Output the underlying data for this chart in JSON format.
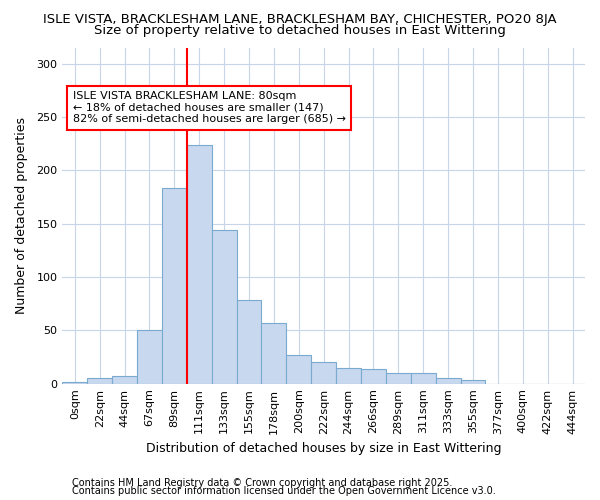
{
  "title1": "ISLE VISTA, BRACKLESHAM LANE, BRACKLESHAM BAY, CHICHESTER, PO20 8JA",
  "title2": "Size of property relative to detached houses in East Wittering",
  "xlabel": "Distribution of detached houses by size in East Wittering",
  "ylabel": "Number of detached properties",
  "categories": [
    "0sqm",
    "22sqm",
    "44sqm",
    "67sqm",
    "89sqm",
    "111sqm",
    "133sqm",
    "155sqm",
    "178sqm",
    "200sqm",
    "222sqm",
    "244sqm",
    "266sqm",
    "289sqm",
    "311sqm",
    "333sqm",
    "355sqm",
    "377sqm",
    "400sqm",
    "422sqm",
    "444sqm"
  ],
  "values": [
    2,
    5,
    7,
    50,
    183,
    224,
    144,
    78,
    57,
    27,
    20,
    15,
    14,
    10,
    10,
    5,
    3,
    0,
    0,
    0,
    0
  ],
  "bar_color": "#c8d8ee",
  "bar_edge_color": "#7aaad0",
  "red_line_x": 4.5,
  "annotation_text": "ISLE VISTA BRACKLESHAM LANE: 80sqm\n← 18% of detached houses are smaller (147)\n82% of semi-detached houses are larger (685) →",
  "annotation_box_color": "white",
  "annotation_box_edge_color": "red",
  "ylim": [
    0,
    315
  ],
  "yticks": [
    0,
    50,
    100,
    150,
    200,
    250,
    300
  ],
  "plot_bg_color": "#ffffff",
  "fig_bg_color": "#ffffff",
  "grid_color": "#c8d4e8",
  "footer1": "Contains HM Land Registry data © Crown copyright and database right 2025.",
  "footer2": "Contains public sector information licensed under the Open Government Licence v3.0.",
  "title_fontsize": 9.5,
  "subtitle_fontsize": 9.5,
  "tick_fontsize": 8,
  "label_fontsize": 9,
  "footer_fontsize": 7
}
